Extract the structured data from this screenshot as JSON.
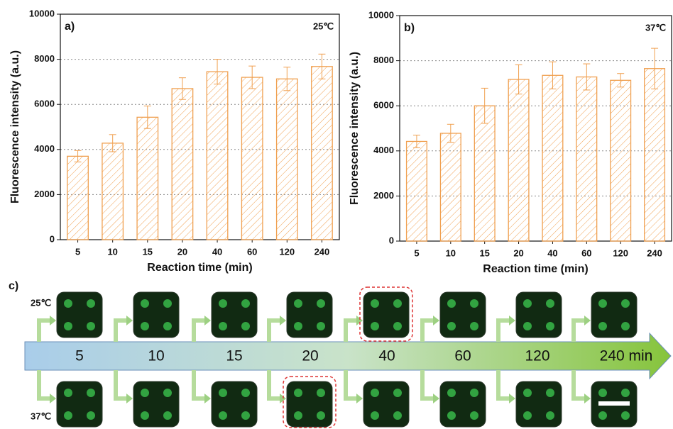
{
  "chart_data": [
    {
      "type": "bar",
      "panel_label": "a)",
      "annotation": "25℃",
      "categories": [
        "5",
        "10",
        "15",
        "20",
        "40",
        "60",
        "120",
        "240"
      ],
      "values": [
        3700,
        4280,
        5430,
        6700,
        7450,
        7200,
        7130,
        7680
      ],
      "errors": [
        250,
        380,
        500,
        480,
        550,
        500,
        520,
        550
      ],
      "color": "#f0a050",
      "xlabel": "Reaction time (min)",
      "ylabel": "Fluorescence intensity (a.u.)",
      "ylim": [
        0,
        10000
      ],
      "yticks": [
        0,
        2000,
        4000,
        6000,
        8000,
        10000
      ],
      "grid": true
    },
    {
      "type": "bar",
      "panel_label": "b)",
      "annotation": "37℃",
      "categories": [
        "5",
        "10",
        "15",
        "20",
        "40",
        "60",
        "120",
        "240"
      ],
      "values": [
        4420,
        4780,
        6000,
        7170,
        7350,
        7280,
        7130,
        7650
      ],
      "errors": [
        280,
        400,
        780,
        650,
        600,
        580,
        300,
        900
      ],
      "color": "#f0a050",
      "xlabel": "Reaction time (min)",
      "ylabel": "Fluorescence intensity (a.u.)",
      "ylim": [
        0,
        10000
      ],
      "yticks": [
        0,
        2000,
        4000,
        6000,
        8000,
        10000
      ],
      "grid": true
    }
  ],
  "panel_c": {
    "label": "c)",
    "top_label": "25℃",
    "bottom_label": "37℃",
    "axis_labels": [
      "5",
      "10",
      "15",
      "20",
      "40",
      "60",
      "120",
      "240 min"
    ]
  }
}
